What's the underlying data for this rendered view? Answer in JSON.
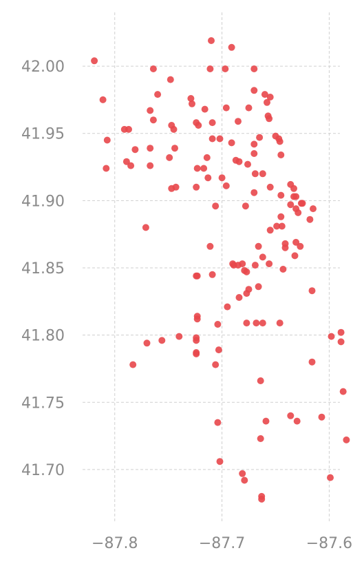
{
  "chart_data": {
    "type": "scatter",
    "title": "",
    "xlabel": "",
    "ylabel": "",
    "xlim": [
      -87.83,
      -87.59
    ],
    "ylim": [
      41.66,
      42.04
    ],
    "grid": true,
    "point_color": "#e8474b",
    "x_ticks": [
      -87.8,
      -87.7,
      -87.6
    ],
    "x_tick_labels": [
      "−87.8",
      "−87.7",
      "−87.6"
    ],
    "y_ticks": [
      41.7,
      41.75,
      41.8,
      41.85,
      41.9,
      41.95,
      42.0
    ],
    "y_tick_labels": [
      "41.70",
      "41.75",
      "41.80",
      "41.85",
      "41.90",
      "41.95",
      "42.00"
    ],
    "points": [
      [
        -87.819,
        42.004
      ],
      [
        -87.71,
        42.019
      ],
      [
        -87.691,
        42.014
      ],
      [
        -87.811,
        41.975
      ],
      [
        -87.764,
        41.998
      ],
      [
        -87.711,
        41.998
      ],
      [
        -87.697,
        41.998
      ],
      [
        -87.67,
        41.998
      ],
      [
        -87.748,
        41.99
      ],
      [
        -87.76,
        41.979
      ],
      [
        -87.729,
        41.976
      ],
      [
        -87.728,
        41.972
      ],
      [
        -87.716,
        41.968
      ],
      [
        -87.67,
        41.982
      ],
      [
        -87.66,
        41.979
      ],
      [
        -87.655,
        41.977
      ],
      [
        -87.658,
        41.973
      ],
      [
        -87.675,
        41.969
      ],
      [
        -87.696,
        41.969
      ],
      [
        -87.767,
        41.967
      ],
      [
        -87.764,
        41.96
      ],
      [
        -87.657,
        41.963
      ],
      [
        -87.656,
        41.961
      ],
      [
        -87.747,
        41.956
      ],
      [
        -87.745,
        41.953
      ],
      [
        -87.724,
        41.958
      ],
      [
        -87.722,
        41.956
      ],
      [
        -87.709,
        41.958
      ],
      [
        -87.685,
        41.959
      ],
      [
        -87.791,
        41.953
      ],
      [
        -87.787,
        41.953
      ],
      [
        -87.807,
        41.945
      ],
      [
        -87.665,
        41.947
      ],
      [
        -87.65,
        41.948
      ],
      [
        -87.647,
        41.946
      ],
      [
        -87.646,
        41.944
      ],
      [
        -87.709,
        41.946
      ],
      [
        -87.702,
        41.946
      ],
      [
        -87.691,
        41.943
      ],
      [
        -87.67,
        41.942
      ],
      [
        -87.781,
        41.938
      ],
      [
        -87.767,
        41.939
      ],
      [
        -87.744,
        41.939
      ],
      [
        -87.67,
        41.935
      ],
      [
        -87.645,
        41.934
      ],
      [
        -87.749,
        41.932
      ],
      [
        -87.714,
        41.932
      ],
      [
        -87.789,
        41.929
      ],
      [
        -87.785,
        41.926
      ],
      [
        -87.767,
        41.926
      ],
      [
        -87.687,
        41.93
      ],
      [
        -87.684,
        41.929
      ],
      [
        -87.676,
        41.927
      ],
      [
        -87.808,
        41.924
      ],
      [
        -87.723,
        41.924
      ],
      [
        -87.717,
        41.924
      ],
      [
        -87.669,
        41.92
      ],
      [
        -87.662,
        41.92
      ],
      [
        -87.713,
        41.917
      ],
      [
        -87.7,
        41.917
      ],
      [
        -87.747,
        41.909
      ],
      [
        -87.743,
        41.91
      ],
      [
        -87.724,
        41.91
      ],
      [
        -87.696,
        41.911
      ],
      [
        -87.655,
        41.91
      ],
      [
        -87.636,
        41.912
      ],
      [
        -87.633,
        41.909
      ],
      [
        -87.67,
        41.906
      ],
      [
        -87.645,
        41.904
      ],
      [
        -87.633,
        41.903
      ],
      [
        -87.631,
        41.903
      ],
      [
        -87.626,
        41.898
      ],
      [
        -87.625,
        41.898
      ],
      [
        -87.636,
        41.897
      ],
      [
        -87.631,
        41.894
      ],
      [
        -87.629,
        41.891
      ],
      [
        -87.615,
        41.894
      ],
      [
        -87.706,
        41.896
      ],
      [
        -87.678,
        41.896
      ],
      [
        -87.645,
        41.888
      ],
      [
        -87.618,
        41.886
      ],
      [
        -87.771,
        41.88
      ],
      [
        -87.649,
        41.881
      ],
      [
        -87.644,
        41.881
      ],
      [
        -87.655,
        41.878
      ],
      [
        -87.641,
        41.868
      ],
      [
        -87.631,
        41.869
      ],
      [
        -87.627,
        41.866
      ],
      [
        -87.641,
        41.865
      ],
      [
        -87.666,
        41.866
      ],
      [
        -87.711,
        41.866
      ],
      [
        -87.632,
        41.859
      ],
      [
        -87.662,
        41.858
      ],
      [
        -87.69,
        41.853
      ],
      [
        -87.689,
        41.852
      ],
      [
        -87.685,
        41.852
      ],
      [
        -87.681,
        41.853
      ],
      [
        -87.679,
        41.848
      ],
      [
        -87.677,
        41.847
      ],
      [
        -87.669,
        41.852
      ],
      [
        -87.656,
        41.853
      ],
      [
        -87.643,
        41.849
      ],
      [
        -87.724,
        41.844
      ],
      [
        -87.723,
        41.844
      ],
      [
        -87.709,
        41.845
      ],
      [
        -87.666,
        41.836
      ],
      [
        -87.675,
        41.834
      ],
      [
        -87.677,
        41.831
      ],
      [
        -87.616,
        41.833
      ],
      [
        -87.684,
        41.828
      ],
      [
        -87.695,
        41.821
      ],
      [
        -87.723,
        41.814
      ],
      [
        -87.723,
        41.812
      ],
      [
        -87.704,
        41.808
      ],
      [
        -87.677,
        41.809
      ],
      [
        -87.668,
        41.809
      ],
      [
        -87.662,
        41.809
      ],
      [
        -87.646,
        41.809
      ],
      [
        -87.74,
        41.799
      ],
      [
        -87.724,
        41.798
      ],
      [
        -87.724,
        41.796
      ],
      [
        -87.756,
        41.796
      ],
      [
        -87.77,
        41.794
      ],
      [
        -87.598,
        41.799
      ],
      [
        -87.589,
        41.802
      ],
      [
        -87.589,
        41.795
      ],
      [
        -87.703,
        41.789
      ],
      [
        -87.724,
        41.787
      ],
      [
        -87.724,
        41.786
      ],
      [
        -87.706,
        41.778
      ],
      [
        -87.783,
        41.778
      ],
      [
        -87.616,
        41.78
      ],
      [
        -87.664,
        41.766
      ],
      [
        -87.587,
        41.758
      ],
      [
        -87.636,
        41.74
      ],
      [
        -87.63,
        41.736
      ],
      [
        -87.607,
        41.739
      ],
      [
        -87.659,
        41.736
      ],
      [
        -87.704,
        41.735
      ],
      [
        -87.664,
        41.723
      ],
      [
        -87.584,
        41.722
      ],
      [
        -87.702,
        41.706
      ],
      [
        -87.681,
        41.697
      ],
      [
        -87.679,
        41.692
      ],
      [
        -87.599,
        41.694
      ],
      [
        -87.663,
        41.68
      ],
      [
        -87.663,
        41.678
      ]
    ]
  }
}
